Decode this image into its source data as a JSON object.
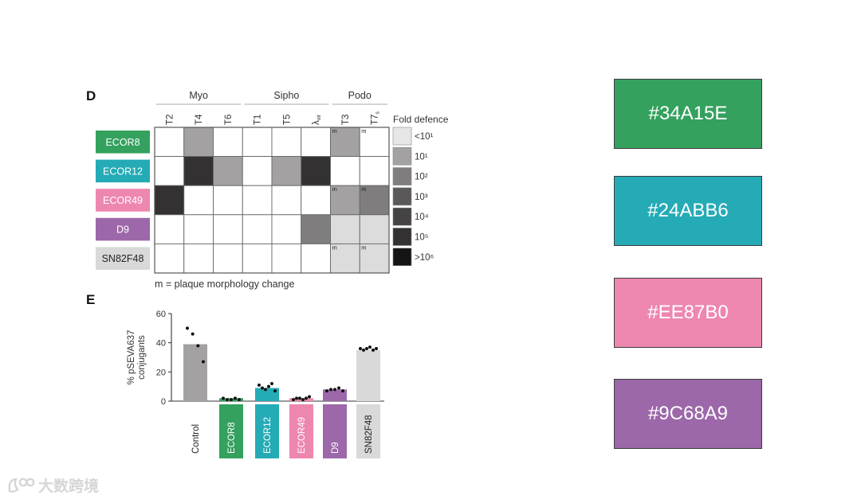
{
  "chart_data": [
    {
      "type": "heatmap",
      "panel_label": "D",
      "families": [
        {
          "name": "Myo",
          "columns": [
            "T2",
            "T4",
            "T6"
          ]
        },
        {
          "name": "Sipho",
          "columns": [
            "T1",
            "T5",
            "λvir"
          ]
        },
        {
          "name": "Podo",
          "columns": [
            "T3",
            "T7s"
          ]
        }
      ],
      "columns": [
        "T2",
        "T4",
        "T6",
        "T1",
        "T5",
        "λvir",
        "T3",
        "T7s"
      ],
      "rows": [
        {
          "label": "ECOR8",
          "color": "#34A15E"
        },
        {
          "label": "ECOR12",
          "color": "#24ABB6"
        },
        {
          "label": "ECOR49",
          "color": "#EE87B0"
        },
        {
          "label": "D9",
          "color": "#9C68A9"
        },
        {
          "label": "SN82F48",
          "color": "#D9D9D9"
        }
      ],
      "values": [
        [
          null,
          1,
          null,
          null,
          null,
          null,
          1,
          null
        ],
        [
          null,
          5,
          1,
          null,
          1,
          5,
          null,
          null
        ],
        [
          5,
          null,
          null,
          null,
          null,
          null,
          1,
          2
        ],
        [
          null,
          null,
          null,
          null,
          null,
          2,
          0,
          0
        ],
        [
          null,
          null,
          null,
          null,
          null,
          null,
          0,
          0
        ]
      ],
      "morphology_marks": [
        [
          0,
          6
        ],
        [
          0,
          7
        ],
        [
          2,
          6
        ],
        [
          2,
          7
        ],
        [
          4,
          6
        ],
        [
          4,
          7
        ]
      ],
      "morphology_mark_symbol": "m",
      "legend": {
        "title": "Fold defence",
        "levels": [
          {
            "label": "<10¹",
            "color": "#e6e6e6"
          },
          {
            "label": "10¹",
            "color": "#a3a1a2"
          },
          {
            "label": "10²",
            "color": "#7f7d7e"
          },
          {
            "label": "10³",
            "color": "#5a5859"
          },
          {
            "label": "10⁴",
            "color": "#454344"
          },
          {
            "label": "10⁵",
            "color": "#333132"
          },
          {
            "label": ">10⁶",
            "color": "#151515"
          }
        ]
      },
      "footnote": "m = plaque morphology change",
      "cell_palette": [
        "#dcdcdc",
        "#a3a1a2",
        "#7f7d7e",
        "#5a5859",
        "#454344",
        "#333132",
        "#151515"
      ]
    },
    {
      "type": "bar",
      "panel_label": "E",
      "categories": [
        "Control",
        "ECOR8",
        "ECOR12",
        "ECOR49",
        "D9",
        "SN82F48"
      ],
      "category_colors": [
        "#ffffff",
        "#34A15E",
        "#24ABB6",
        "#EE87B0",
        "#9C68A9",
        "#D9D9D9"
      ],
      "bar_colors": [
        "#a3a1a2",
        "#34A15E",
        "#24ABB6",
        "#EE87B0",
        "#9C68A9",
        "#D9D9D9"
      ],
      "values": [
        39,
        2,
        9,
        2,
        8,
        35
      ],
      "points": [
        [
          50,
          46,
          38,
          27
        ],
        [
          2,
          1,
          1,
          2,
          1
        ],
        [
          11,
          9,
          8,
          10,
          12,
          7
        ],
        [
          1,
          2,
          2,
          1,
          2,
          3
        ],
        [
          7,
          8,
          8,
          9,
          7
        ],
        [
          36,
          35,
          36,
          37,
          35,
          36
        ]
      ],
      "ylabel_line1": "% pSEVA637",
      "ylabel_line2": "conjugants",
      "ylim": [
        0,
        60
      ],
      "yticks": [
        0,
        20,
        40,
        60
      ],
      "grid": false
    }
  ],
  "swatches": [
    {
      "label": "#34A15E",
      "color": "#34A15E"
    },
    {
      "label": "#24ABB6",
      "color": "#24ABB6"
    },
    {
      "label": "#EE87B0",
      "color": "#EE87B0"
    },
    {
      "label": "#9C68A9",
      "color": "#9C68A9"
    }
  ],
  "watermark": {
    "text": "大数跨境"
  }
}
